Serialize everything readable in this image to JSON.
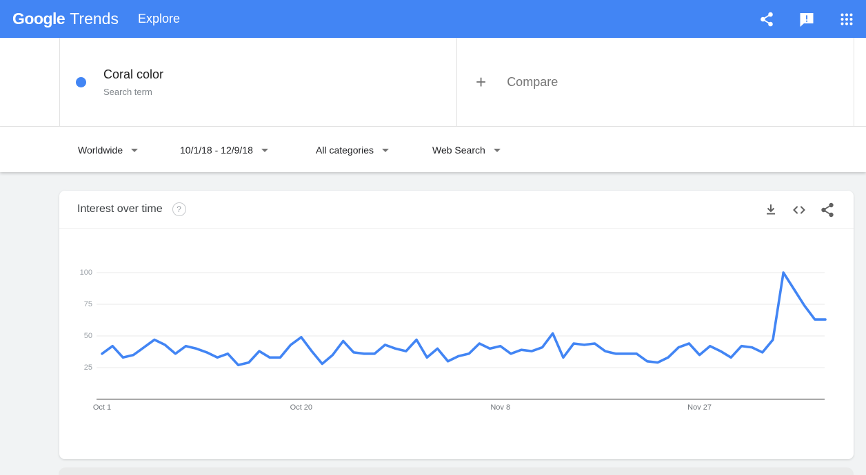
{
  "appbar": {
    "logo_google": "Google",
    "logo_trends": "Trends",
    "nav_explore": "Explore",
    "bg_color": "#4285f4",
    "icons": [
      "share-icon",
      "feedback-icon",
      "apps-grid-icon"
    ]
  },
  "term_card": {
    "term": "Coral color",
    "type_label": "Search term",
    "dot_color": "#4285f4"
  },
  "compare_card": {
    "plus": "+",
    "label": "Compare"
  },
  "filters": [
    {
      "label": "Worldwide"
    },
    {
      "label": "10/1/18 - 12/9/18"
    },
    {
      "label": "All categories"
    },
    {
      "label": "Web Search"
    }
  ],
  "chart_card": {
    "title": "Interest over time",
    "help_glyph": "?",
    "icons": [
      "download-icon",
      "embed-icon",
      "share-icon"
    ]
  },
  "chart_data": {
    "type": "line",
    "title": "Interest over time",
    "series_name": "Coral color",
    "line_color": "#4285f4",
    "date_range": "10/1/18 - 12/9/18",
    "x_tick_labels": [
      "Oct 1",
      "Oct 20",
      "Nov 8",
      "Nov 27"
    ],
    "x_tick_indices": [
      0,
      19,
      38,
      57
    ],
    "y_ticks": [
      25,
      50,
      75,
      100
    ],
    "ylim": [
      0,
      100
    ],
    "grid": true,
    "legend": false,
    "values": [
      36,
      42,
      33,
      35,
      41,
      47,
      43,
      36,
      42,
      40,
      37,
      33,
      36,
      27,
      29,
      38,
      33,
      33,
      43,
      49,
      38,
      28,
      35,
      46,
      37,
      36,
      36,
      43,
      40,
      38,
      47,
      33,
      40,
      30,
      34,
      36,
      44,
      40,
      42,
      36,
      39,
      38,
      41,
      52,
      33,
      44,
      43,
      44,
      38,
      36,
      36,
      36,
      30,
      29,
      33,
      41,
      44,
      35,
      42,
      38,
      33,
      42,
      41,
      37,
      47,
      100,
      87,
      74,
      63,
      63
    ]
  }
}
